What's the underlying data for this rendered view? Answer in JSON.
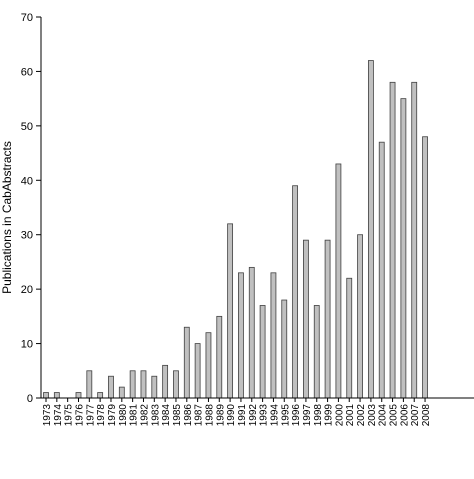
{
  "chart_data": {
    "type": "bar",
    "ylabel": "Publications in CabAbstracts",
    "xlabel": "",
    "ylim": [
      0,
      70
    ],
    "yticks": [
      0,
      10,
      20,
      30,
      40,
      50,
      60,
      70
    ],
    "grid": false,
    "categories": [
      "1973",
      "1974",
      "1975",
      "1976",
      "1977",
      "1978",
      "1979",
      "1980",
      "1981",
      "1982",
      "1983",
      "1984",
      "1985",
      "1986",
      "1987",
      "1988",
      "1989",
      "1990",
      "1991",
      "1992",
      "1993",
      "1994",
      "1995",
      "1996",
      "1997",
      "1998",
      "1999",
      "2000",
      "2001",
      "2002",
      "2003",
      "2004",
      "2005",
      "2006",
      "2007",
      "2008"
    ],
    "values": [
      1,
      1,
      0,
      1,
      5,
      1,
      4,
      2,
      5,
      5,
      4,
      6,
      5,
      13,
      10,
      12,
      15,
      32,
      23,
      24,
      17,
      23,
      18,
      39,
      29,
      17,
      29,
      43,
      22,
      30,
      62,
      47,
      58,
      55,
      58,
      48
    ]
  },
  "colors": {
    "bar_fill": "#c0c0c0",
    "bar_stroke": "#404040",
    "axis": "#000000",
    "background": "#ffffff"
  }
}
